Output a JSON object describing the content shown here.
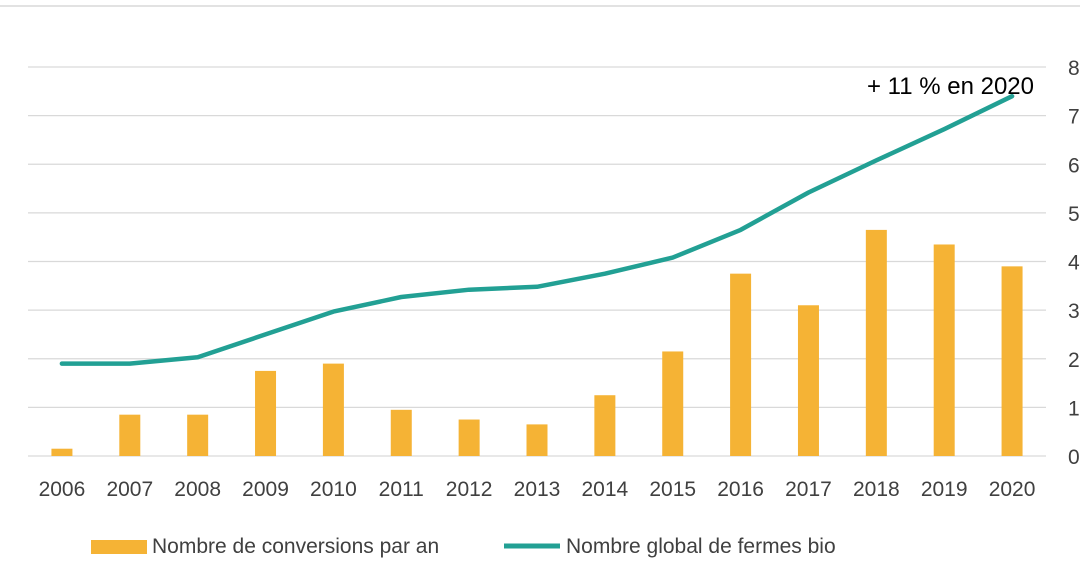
{
  "chart_data": {
    "type": "bar",
    "categories": [
      "2006",
      "2007",
      "2008",
      "2009",
      "2010",
      "2011",
      "2012",
      "2013",
      "2014",
      "2015",
      "2016",
      "2017",
      "2018",
      "2019",
      "2020"
    ],
    "series": [
      {
        "name": "Nombre de conversions par an",
        "type": "bar",
        "axis": "left",
        "color": "#F5B335",
        "values": [
          15,
          85,
          85,
          175,
          190,
          95,
          75,
          65,
          125,
          215,
          375,
          310,
          465,
          435,
          390
        ]
      },
      {
        "name": "Nombre global de fermes bio",
        "type": "line",
        "axis": "right",
        "color": "#22A094",
        "values": [
          1.9,
          1.9,
          2.03,
          2.5,
          2.97,
          3.27,
          3.42,
          3.48,
          3.75,
          4.08,
          4.65,
          5.42,
          6.08,
          6.72,
          7.4
        ]
      }
    ],
    "ylim_left": [
      0,
      800
    ],
    "ylim_right": [
      0,
      8
    ],
    "y_ticks_right": [
      "0",
      "1",
      "2",
      "3",
      "4",
      "5",
      "6",
      "7",
      "8"
    ],
    "grid": true,
    "legend_position": "bottom",
    "annotation": "+ 11 % en 2020",
    "colors": {
      "grid": "#D9D9D9",
      "axis_text": "#404040",
      "border": "#D9D9D9"
    }
  }
}
